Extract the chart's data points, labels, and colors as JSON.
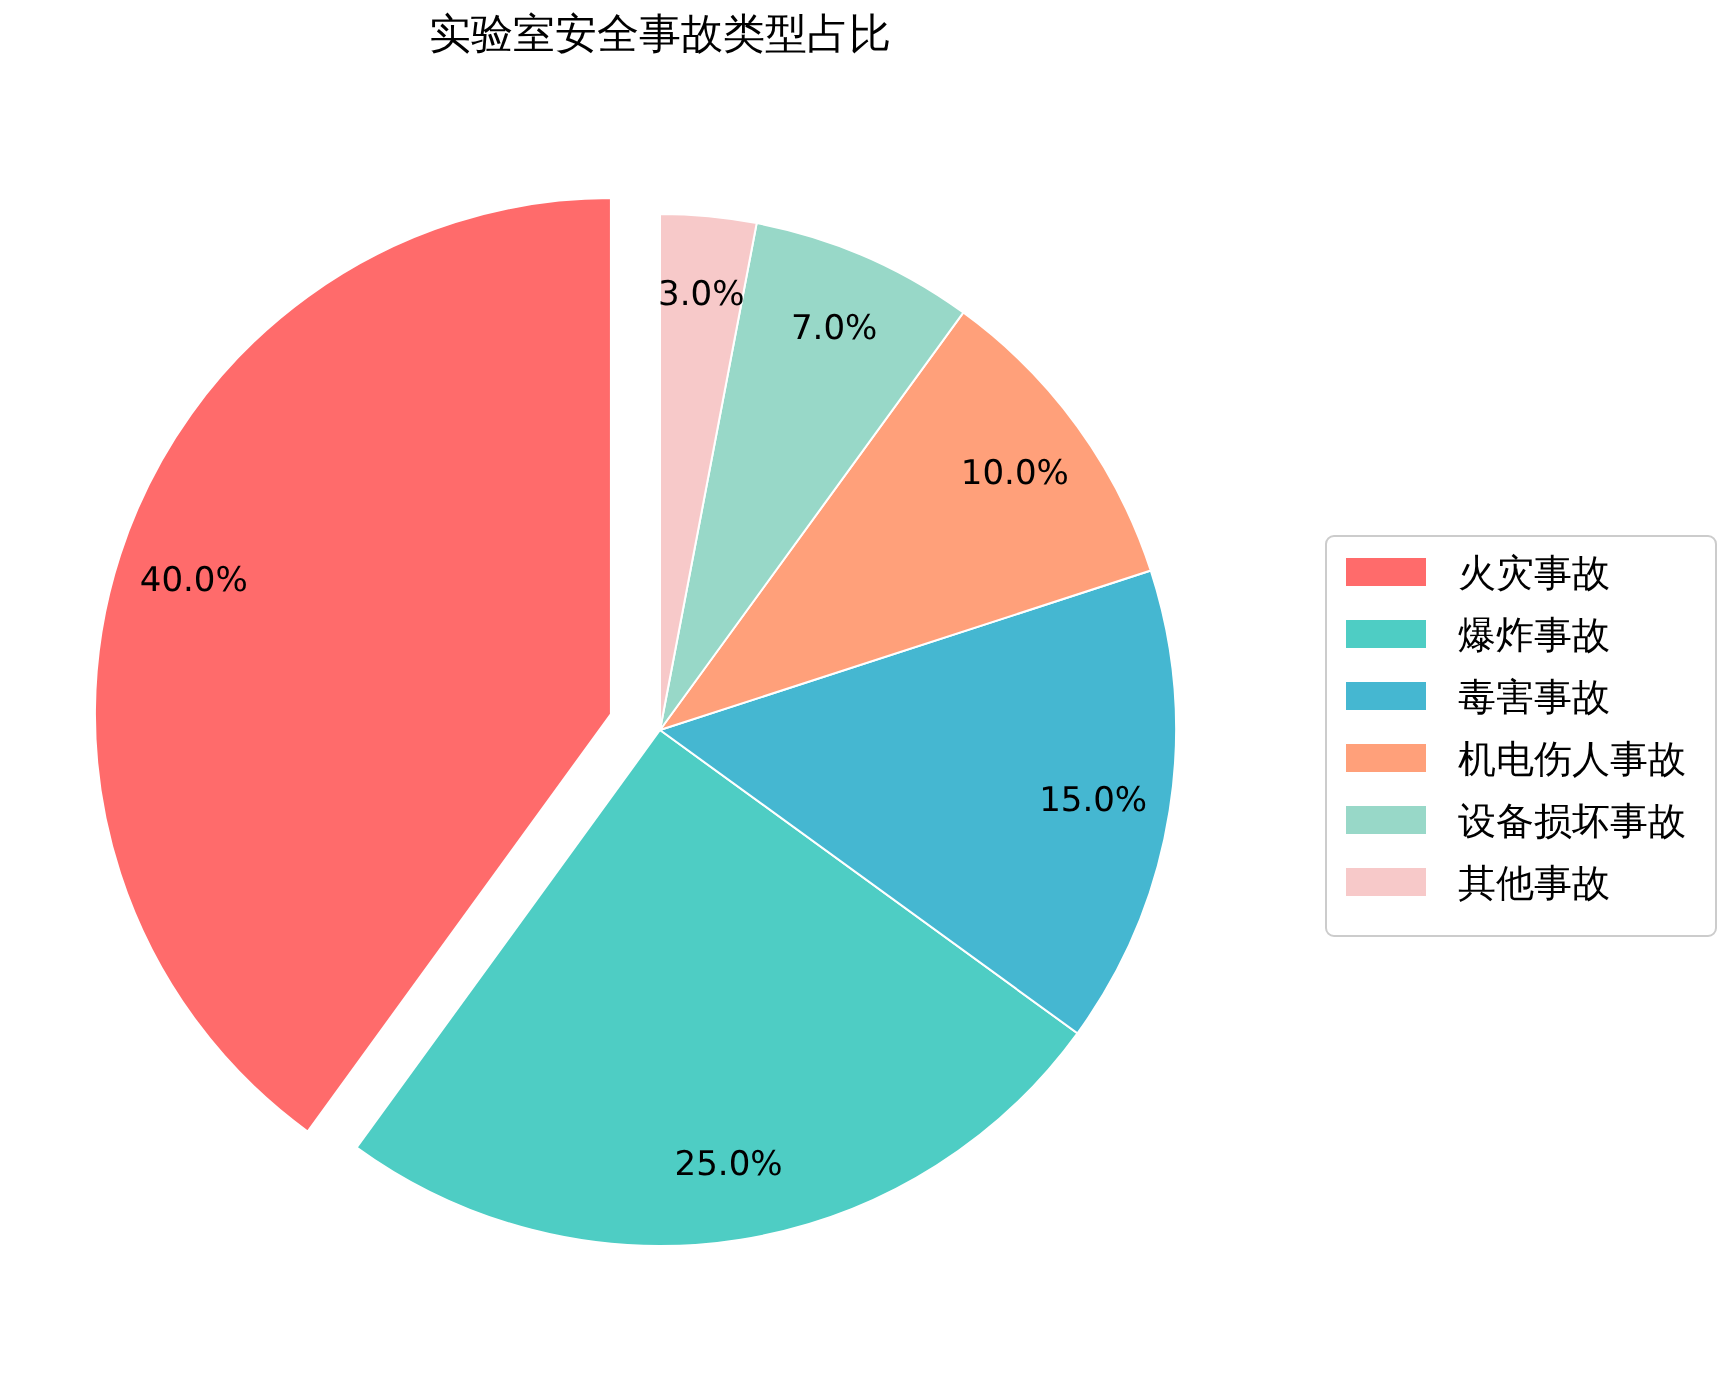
{
  "chart_data": {
    "type": "pie",
    "title": "实验室安全事故类型占比",
    "categories": [
      "火灾事故",
      "爆炸事故",
      "毒害事故",
      "机电伤人事故",
      "设备损坏事故",
      "其他事故"
    ],
    "values": [
      40,
      25,
      15,
      10,
      7,
      3
    ],
    "colors": [
      "#ff6b6b",
      "#4ecdc4",
      "#45b7d1",
      "#ffa07a",
      "#98d8c8",
      "#f7c9c9"
    ],
    "value_labels": [
      "40.0%",
      "25.0%",
      "15.0%",
      "10.0%",
      "7.0%",
      "3.0%"
    ],
    "legend": "right"
  }
}
